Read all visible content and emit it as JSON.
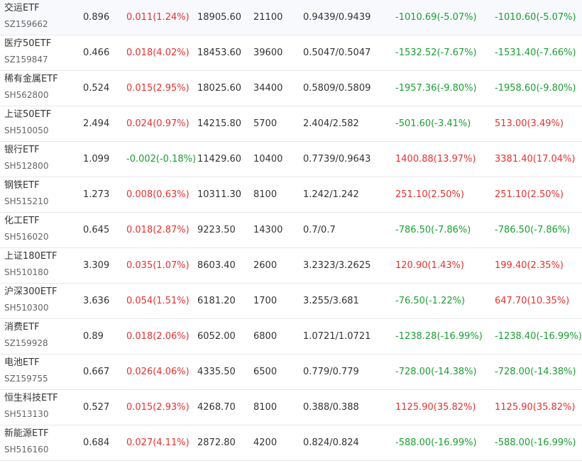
{
  "colors": {
    "up": "#e93030",
    "down": "#1aa034",
    "text": "#333333",
    "subtext": "#666666",
    "divider": "#e8e8e8"
  },
  "rows": [
    {
      "name": "交运ETF",
      "code": "SZ159662",
      "price": "0.896",
      "change": "0.011(1.24%)",
      "change_dir": "up",
      "amount": "18905.60",
      "shares": "21100",
      "cost": "0.9439/0.9439",
      "pnl1": "-1010.69(-5.07%)",
      "pnl1_dir": "down",
      "pnl2": "-1010.60(-5.07%)",
      "pnl2_dir": "down"
    },
    {
      "name": "医疗50ETF",
      "code": "SZ159847",
      "price": "0.466",
      "change": "0.018(4.02%)",
      "change_dir": "up",
      "amount": "18453.60",
      "shares": "39600",
      "cost": "0.5047/0.5047",
      "pnl1": "-1532.52(-7.67%)",
      "pnl1_dir": "down",
      "pnl2": "-1531.40(-7.66%)",
      "pnl2_dir": "down"
    },
    {
      "name": "稀有金属ETF",
      "code": "SH562800",
      "price": "0.524",
      "change": "0.015(2.95%)",
      "change_dir": "up",
      "amount": "18025.60",
      "shares": "34400",
      "cost": "0.5809/0.5809",
      "pnl1": "-1957.36(-9.80%)",
      "pnl1_dir": "down",
      "pnl2": "-1958.60(-9.80%)",
      "pnl2_dir": "down"
    },
    {
      "name": "上证50ETF",
      "code": "SH510050",
      "price": "2.494",
      "change": "0.024(0.97%)",
      "change_dir": "up",
      "amount": "14215.80",
      "shares": "5700",
      "cost": "2.404/2.582",
      "pnl1": "-501.60(-3.41%)",
      "pnl1_dir": "down",
      "pnl2": "513.00(3.49%)",
      "pnl2_dir": "up"
    },
    {
      "name": "银行ETF",
      "code": "SH512800",
      "price": "1.099",
      "change": "-0.002(-0.18%)",
      "change_dir": "down",
      "amount": "11429.60",
      "shares": "10400",
      "cost": "0.7739/0.9643",
      "pnl1": "1400.88(13.97%)",
      "pnl1_dir": "up",
      "pnl2": "3381.40(17.04%)",
      "pnl2_dir": "up"
    },
    {
      "name": "钢铁ETF",
      "code": "SH515210",
      "price": "1.273",
      "change": "0.008(0.63%)",
      "change_dir": "up",
      "amount": "10311.30",
      "shares": "8100",
      "cost": "1.242/1.242",
      "pnl1": "251.10(2.50%)",
      "pnl1_dir": "up",
      "pnl2": "251.10(2.50%)",
      "pnl2_dir": "up"
    },
    {
      "name": "化工ETF",
      "code": "SH516020",
      "price": "0.645",
      "change": "0.018(2.87%)",
      "change_dir": "up",
      "amount": "9223.50",
      "shares": "14300",
      "cost": "0.7/0.7",
      "pnl1": "-786.50(-7.86%)",
      "pnl1_dir": "down",
      "pnl2": "-786.50(-7.86%)",
      "pnl2_dir": "down"
    },
    {
      "name": "上证180ETF",
      "code": "SH510180",
      "price": "3.309",
      "change": "0.035(1.07%)",
      "change_dir": "up",
      "amount": "8603.40",
      "shares": "2600",
      "cost": "3.2323/3.2625",
      "pnl1": "120.90(1.43%)",
      "pnl1_dir": "up",
      "pnl2": "199.40(2.35%)",
      "pnl2_dir": "up"
    },
    {
      "name": "沪深300ETF",
      "code": "SH510300",
      "price": "3.636",
      "change": "0.054(1.51%)",
      "change_dir": "up",
      "amount": "6181.20",
      "shares": "1700",
      "cost": "3.255/3.681",
      "pnl1": "-76.50(-1.22%)",
      "pnl1_dir": "down",
      "pnl2": "647.70(10.35%)",
      "pnl2_dir": "up"
    },
    {
      "name": "消费ETF",
      "code": "SZ159928",
      "price": "0.89",
      "change": "0.018(2.06%)",
      "change_dir": "up",
      "amount": "6052.00",
      "shares": "6800",
      "cost": "1.0721/1.0721",
      "pnl1": "-1238.28(-16.99%)",
      "pnl1_dir": "down",
      "pnl2": "-1238.40(-16.99%)",
      "pnl2_dir": "down"
    },
    {
      "name": "电池ETF",
      "code": "SZ159755",
      "price": "0.667",
      "change": "0.026(4.06%)",
      "change_dir": "up",
      "amount": "4335.50",
      "shares": "6500",
      "cost": "0.779/0.779",
      "pnl1": "-728.00(-14.38%)",
      "pnl1_dir": "down",
      "pnl2": "-728.00(-14.38%)",
      "pnl2_dir": "down"
    },
    {
      "name": "恒生科技ETF",
      "code": "SH513130",
      "price": "0.527",
      "change": "0.015(2.93%)",
      "change_dir": "up",
      "amount": "4268.70",
      "shares": "8100",
      "cost": "0.388/0.388",
      "pnl1": "1125.90(35.82%)",
      "pnl1_dir": "up",
      "pnl2": "1125.90(35.82%)",
      "pnl2_dir": "up"
    },
    {
      "name": "新能源ETF",
      "code": "SH516160",
      "price": "0.684",
      "change": "0.027(4.11%)",
      "change_dir": "up",
      "amount": "2872.80",
      "shares": "4200",
      "cost": "0.824/0.824",
      "pnl1": "-588.00(-16.99%)",
      "pnl1_dir": "down",
      "pnl2": "-588.00(-16.99%)",
      "pnl2_dir": "down"
    }
  ]
}
